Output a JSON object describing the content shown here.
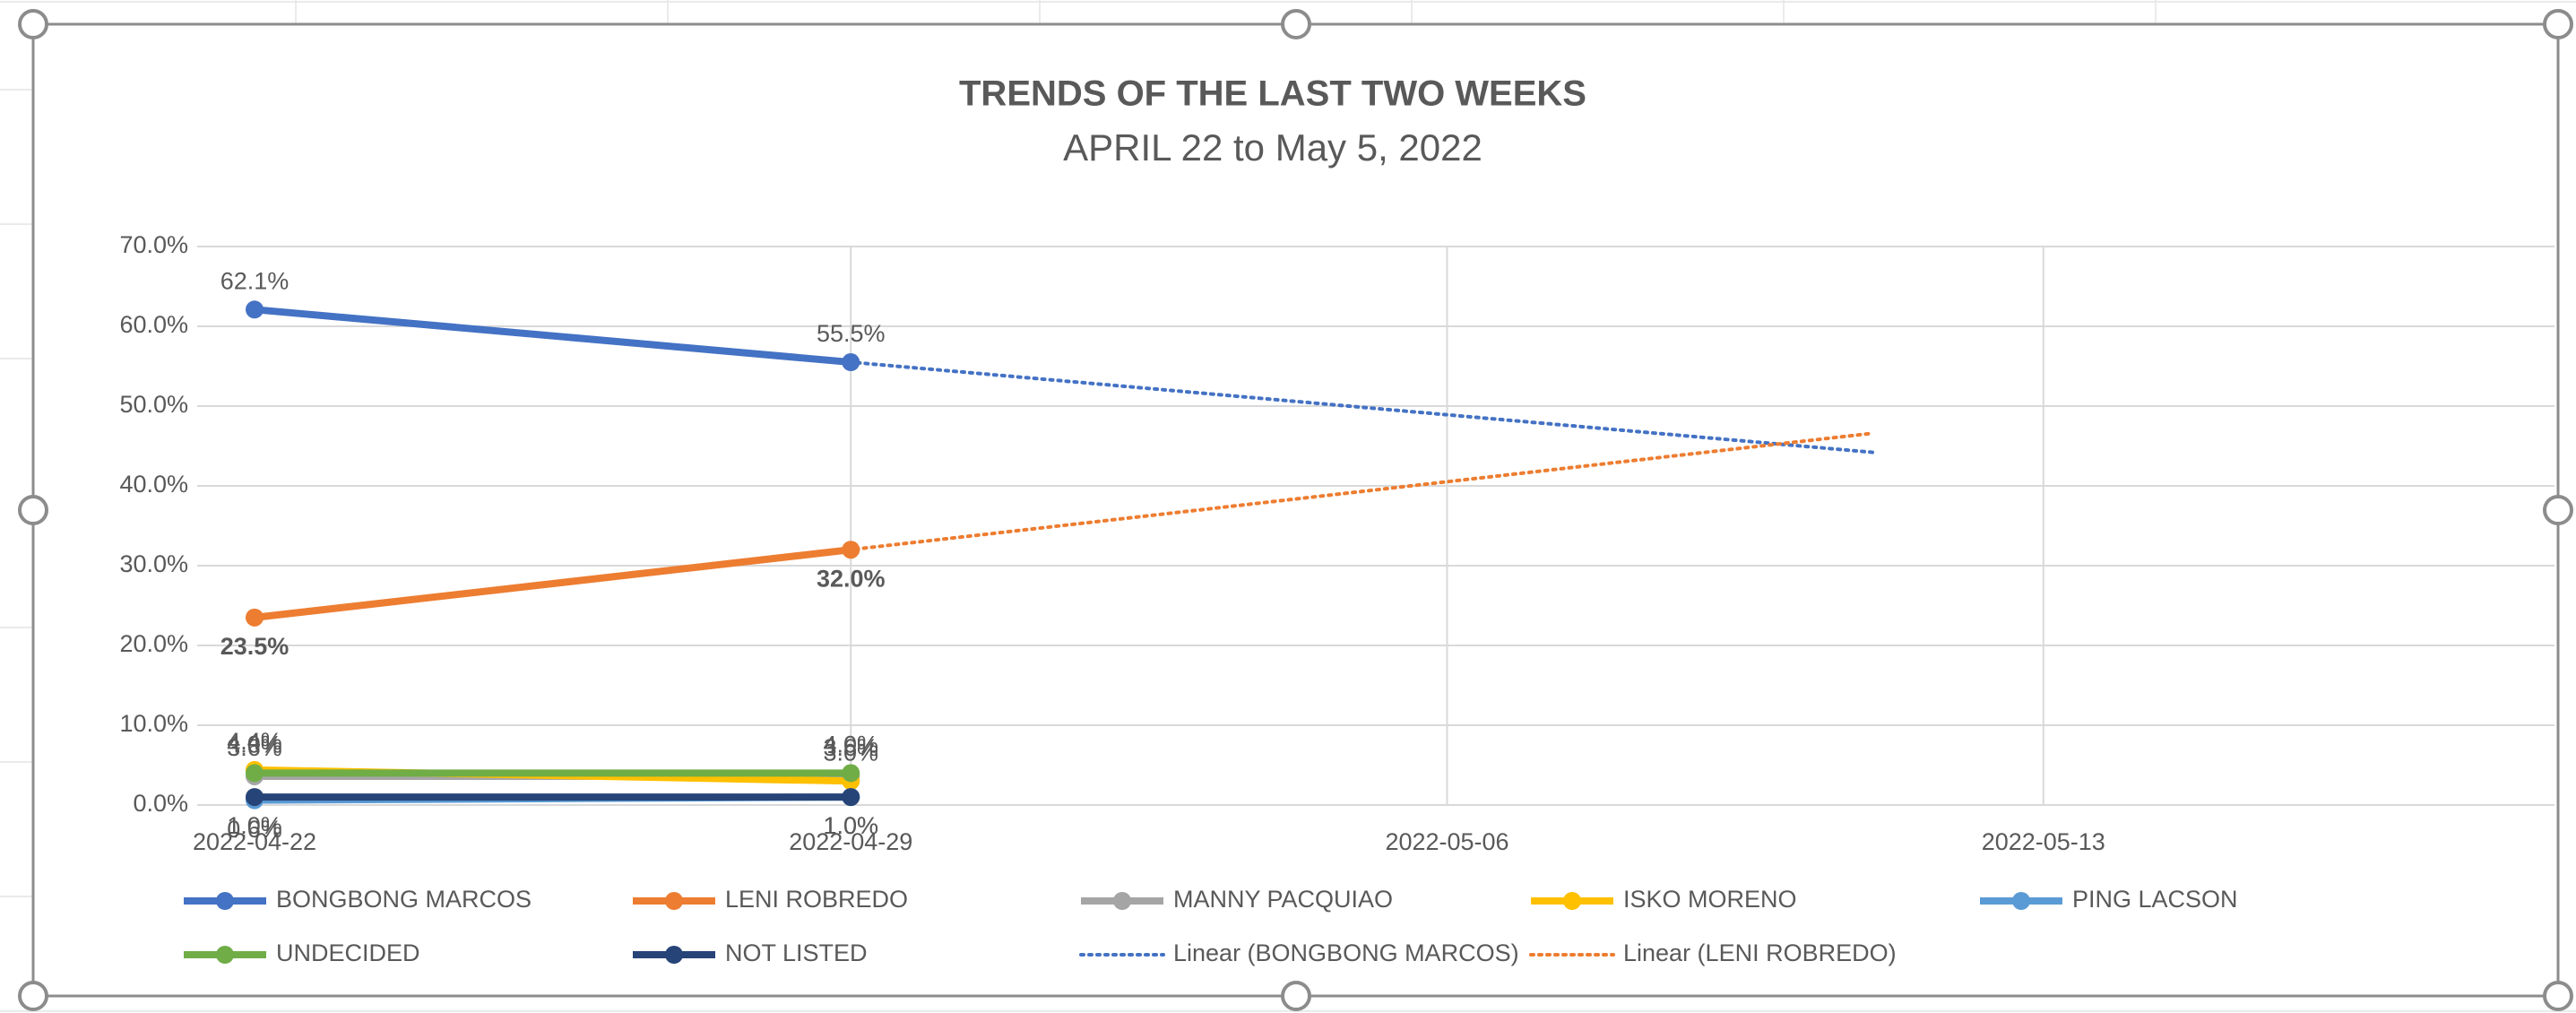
{
  "chart_data": {
    "type": "line",
    "title": "TRENDS OF THE LAST TWO WEEKS",
    "subtitle": "APRIL 22 to May 5, 2022",
    "x": [
      "2022-04-22",
      "2022-04-29"
    ],
    "xlim": [
      "2022-04-22",
      "2022-05-19"
    ],
    "xticks": [
      "2022-04-22",
      "2022-04-29",
      "2022-05-06",
      "2022-05-13"
    ],
    "ylim": [
      0,
      70
    ],
    "yticks": [
      {
        "value": 0,
        "label": "0.0%"
      },
      {
        "value": 10,
        "label": "10.0%"
      },
      {
        "value": 20,
        "label": "20.0%"
      },
      {
        "value": 30,
        "label": "30.0%"
      },
      {
        "value": 40,
        "label": "40.0%"
      },
      {
        "value": 50,
        "label": "50.0%"
      },
      {
        "value": 60,
        "label": "60.0%"
      },
      {
        "value": 70,
        "label": "70.0%"
      }
    ],
    "grid": true,
    "legend": "bottom",
    "series": [
      {
        "name": "BONGBONG MARCOS",
        "color": "#4472c4",
        "values": [
          62.1,
          55.5
        ],
        "value_labels": [
          "62.1%",
          "55.5%"
        ],
        "label_position": "above"
      },
      {
        "name": "LENI ROBREDO",
        "color": "#ed7d31",
        "values": [
          23.5,
          32.0
        ],
        "value_labels": [
          "23.5%",
          "32.0%"
        ],
        "label_position": "below"
      },
      {
        "name": "MANNY PACQUIAO",
        "color": "#a5a5a5",
        "values": [
          3.6,
          3.6
        ],
        "value_labels": [
          "3.6%",
          "3.6%"
        ],
        "label_position": "above"
      },
      {
        "name": "ISKO MORENO",
        "color": "#ffc000",
        "values": [
          4.4,
          3.0
        ],
        "value_labels": [
          "4.4%",
          "3.0%"
        ],
        "label_position": "above"
      },
      {
        "name": "PING LACSON",
        "color": "#5b9bd5",
        "values": [
          0.6,
          1.0
        ],
        "value_labels": [
          "0.6%",
          "1.0%"
        ],
        "label_position": "below"
      },
      {
        "name": "UNDECIDED",
        "color": "#70ad47",
        "values": [
          4.0,
          4.0
        ],
        "value_labels": [
          "4.0%",
          "4.0%"
        ],
        "label_position": "above"
      },
      {
        "name": "NOT LISTED",
        "color": "#264478",
        "values": [
          1.0,
          1.0
        ],
        "value_labels": [
          "1.0%",
          "1.0%"
        ],
        "label_position": "below"
      }
    ],
    "trendlines": [
      {
        "name": "Linear (BONGBONG MARCOS)",
        "color": "#4472c4",
        "x": [
          "2022-04-22",
          "2022-05-11"
        ],
        "values": [
          62.1,
          44.2
        ]
      },
      {
        "name": "Linear (LENI ROBREDO)",
        "color": "#ed7d31",
        "x": [
          "2022-04-22",
          "2022-05-11"
        ],
        "values": [
          23.5,
          46.6
        ]
      }
    ]
  }
}
